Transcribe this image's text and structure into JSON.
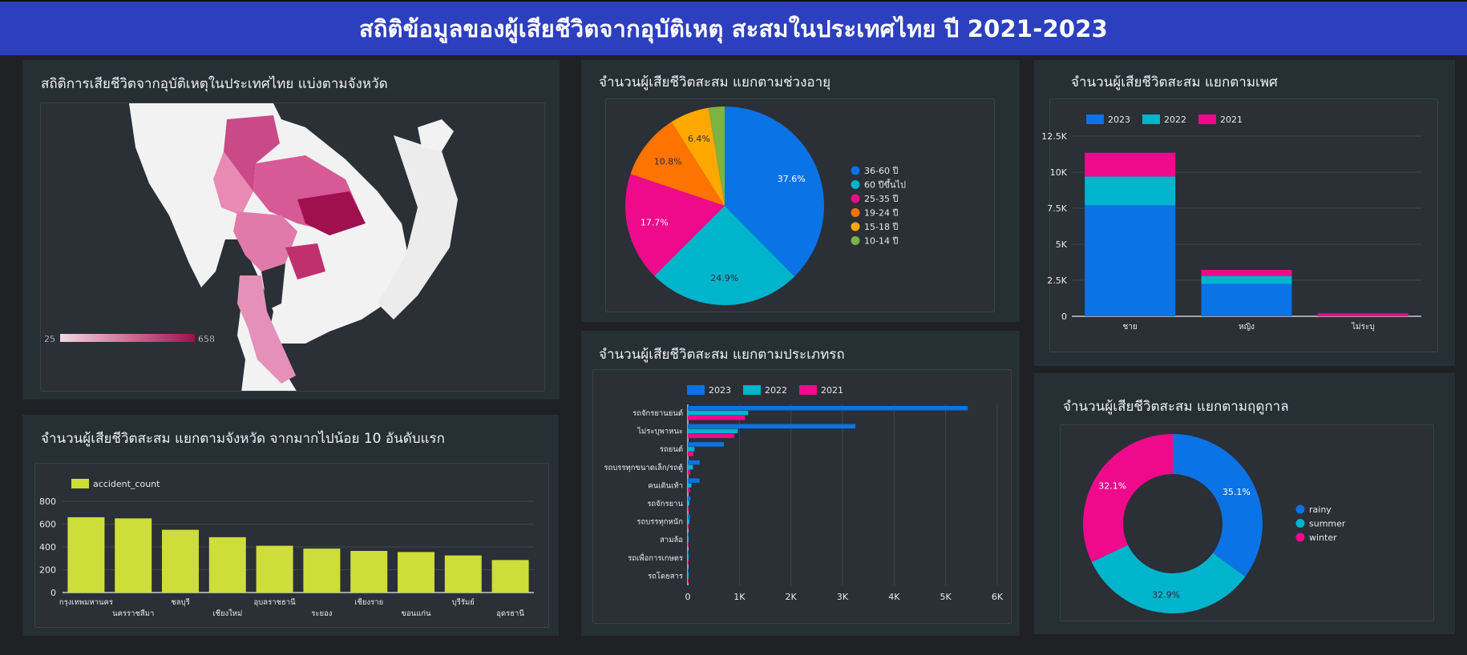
{
  "header": {
    "title": "สถิติข้อมูลของผู้เสียชีวิตจากอุบัติเหตุ สะสมในประเทศไทย ปี 2021-2023"
  },
  "panels": {
    "map": {
      "title": "สถิติการเสียชีวิตจากอุบัติเหตุในประเทศไทย แบ่งตามจังหวัด",
      "scale_min": "25",
      "scale_max": "658",
      "scale_color_low": "#f3d6e3",
      "scale_color_high": "#a0104f"
    },
    "age": {
      "title": "จำนวนผู้เสียชีวิตสะสม แยกตามช่วงอายุ"
    },
    "gender": {
      "title": "จำนวนผู้เสียชีวิตสะสม แยกตามเพศ"
    },
    "province": {
      "title": "จำนวนผู้เสียชีวิตสะสม แยกตามจังหวัด จากมากไปน้อย 10 อันดับแรก"
    },
    "vehicle": {
      "title": "จำนวนผู้เสียชีวิตสะสม แยกตามประเภทรถ"
    },
    "season": {
      "title": "จำนวนผู้เสียชีวิตสะสม แยกตามฤดูกาล"
    }
  },
  "colors": {
    "blue": "#0a73e6",
    "teal": "#00b4cc",
    "pink": "#ef0a8b",
    "orange": "#ff7300",
    "amber": "#ffa800",
    "green": "#7cb342",
    "lime": "#cddd3a"
  },
  "chart_data": [
    {
      "id": "age",
      "type": "pie",
      "labels": [
        "36-60 ปี",
        "60 ปีขึ้นไป",
        "25-35 ปี",
        "19-24 ปี",
        "15-18 ปี",
        "10-14 ปี"
      ],
      "values": [
        37.6,
        24.9,
        17.7,
        10.8,
        6.4,
        2.6
      ],
      "data_labels": [
        "37.6%",
        "24.9%",
        "17.7%",
        "10.8%",
        "6.4%",
        ""
      ],
      "colors": [
        "#0a73e6",
        "#00b4cc",
        "#ef0a8b",
        "#ff7300",
        "#ffa800",
        "#7cb342"
      ],
      "legend": "right"
    },
    {
      "id": "gender",
      "type": "bar",
      "stacked": true,
      "categories": [
        "ชาย",
        "หญิง",
        "ไม่ระบุ"
      ],
      "series": [
        {
          "name": "2023",
          "values": [
            7700,
            2250,
            0
          ],
          "color": "#0a73e6"
        },
        {
          "name": "2022",
          "values": [
            2000,
            550,
            0
          ],
          "color": "#00b4cc"
        },
        {
          "name": "2021",
          "values": [
            1650,
            420,
            200
          ],
          "color": "#ef0a8b"
        }
      ],
      "yticks": [
        "0",
        "2.5K",
        "5K",
        "7.5K",
        "10K",
        "12.5K"
      ],
      "ylim": [
        0,
        12500
      ],
      "legend": "top-left",
      "grid": true
    },
    {
      "id": "province",
      "type": "bar",
      "categories": [
        "กรุงเทพมหานคร",
        "นครราชสีมา",
        "ชลบุรี",
        "เชียงใหม่",
        "อุบลราชธานี",
        "ระยอง",
        "เชียงราย",
        "ขอนแก่น",
        "บุรีรัมย์",
        "อุดรธานี"
      ],
      "series": [
        {
          "name": "accident_count",
          "values": [
            660,
            650,
            550,
            485,
            410,
            385,
            365,
            355,
            325,
            285
          ],
          "color": "#cddd3a"
        }
      ],
      "yticks": [
        "0",
        "200",
        "400",
        "600",
        "800"
      ],
      "ylim": [
        0,
        800
      ],
      "legend": "top-left",
      "grid": true
    },
    {
      "id": "vehicle",
      "type": "bar",
      "orientation": "horizontal",
      "categories": [
        "รถจักรยานยนต์",
        "ไม่ระบุพาหนะ",
        "รถยนต์",
        "รถบรรทุกขนาดเล็ก/รถตู้",
        "คนเดินเท้า",
        "รถจักรยาน",
        "รถบรรทุกหนัก",
        "สามล้อ",
        "รถเพื่อการเกษตร",
        "รถโดยสาร"
      ],
      "series": [
        {
          "name": "2023",
          "values": [
            5430,
            3250,
            700,
            230,
            230,
            50,
            40,
            15,
            8,
            8
          ],
          "color": "#0a73e6"
        },
        {
          "name": "2022",
          "values": [
            1170,
            970,
            130,
            100,
            70,
            30,
            30,
            10,
            5,
            5
          ],
          "color": "#00b4cc"
        },
        {
          "name": "2021",
          "values": [
            1110,
            900,
            110,
            50,
            40,
            20,
            20,
            8,
            4,
            4
          ],
          "color": "#ef0a8b"
        }
      ],
      "xticks": [
        "0",
        "1K",
        "2K",
        "3K",
        "4K",
        "5K",
        "6K"
      ],
      "xlim": [
        0,
        6000
      ],
      "legend": "top-left",
      "grid": true
    },
    {
      "id": "season",
      "type": "pie",
      "donut": true,
      "labels": [
        "rainy",
        "summer",
        "winter"
      ],
      "values": [
        35.1,
        32.9,
        32.1
      ],
      "data_labels": [
        "35.1%",
        "32.9%",
        "32.1%"
      ],
      "colors": [
        "#0a73e6",
        "#00b4cc",
        "#ef0a8b"
      ],
      "legend": "right"
    }
  ]
}
